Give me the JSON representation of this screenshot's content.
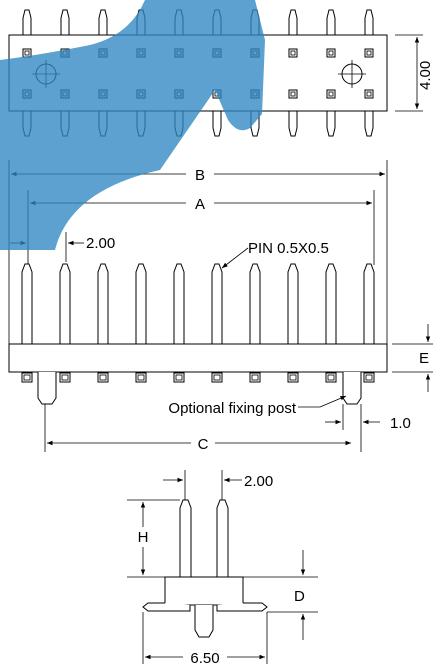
{
  "drawing": {
    "watermark_color": "#2e86c1",
    "top_view": {
      "height_dim": "4.00"
    },
    "side_view": {
      "dim_b": "B",
      "dim_a": "A",
      "dim_pitch": "2.00",
      "pin_note": "PIN 0.5X0.5",
      "dim_e": "E",
      "fixing_note": "Optional fixing post",
      "dim_post": "1.0",
      "dim_c": "C"
    },
    "end_view": {
      "dim_pitch": "2.00",
      "dim_h": "H",
      "dim_d": "D",
      "dim_width": "6.50"
    }
  }
}
